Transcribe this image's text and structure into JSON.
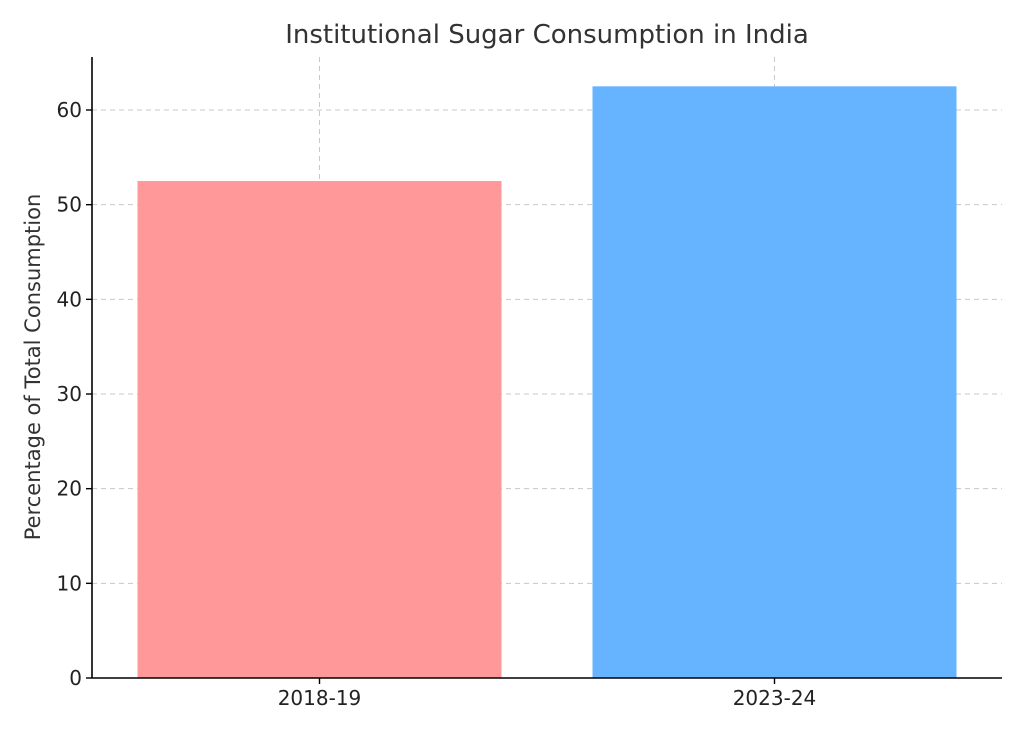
{
  "chart_data": {
    "type": "bar",
    "title": "Institutional Sugar Consumption in India",
    "xlabel": "",
    "ylabel": "Percentage of Total Consumption",
    "categories": [
      "2018-19",
      "2023-24"
    ],
    "values": [
      52.5,
      62.5
    ],
    "colors": [
      "#ff9999",
      "#66b3ff"
    ],
    "ylim": [
      0,
      65.6
    ],
    "yticks": [
      0,
      10,
      20,
      30,
      40,
      50,
      60
    ],
    "grid": true,
    "legend": "none"
  }
}
